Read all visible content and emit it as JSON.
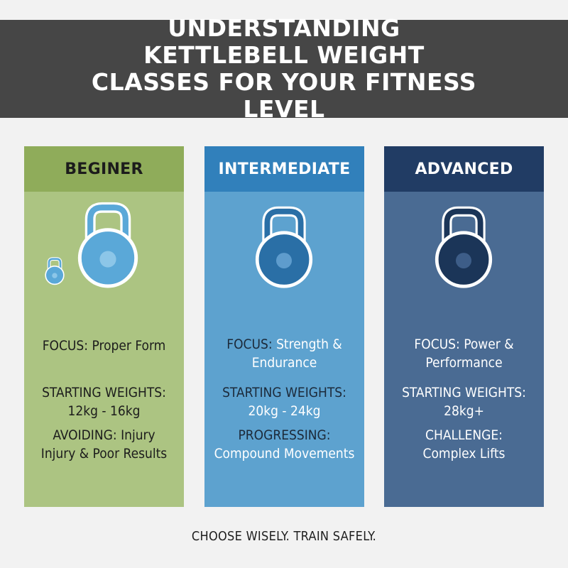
{
  "banner": {
    "title": "UNDERSTANDING KETTLEBELL WEIGHT CLASSES FOR YOUR FITNESS LEVEL"
  },
  "colors": {
    "banner": "#464646",
    "beginner_header": "#8fac5a",
    "beginner_body": "#acc482",
    "intermediate_header": "#3180bb",
    "intermediate_body": "#5da2cf",
    "advanced_header": "#213c64",
    "advanced_body": "#4a6b93"
  },
  "cards": [
    {
      "title": "BEGINER",
      "icon": "kettlebell-icon",
      "focus_label": "FOCUS:",
      "focus_value": "Proper Form",
      "weights_label": "STARTING WEIGHTS:",
      "weights_value": "12kg - 16kg",
      "extra_label": "AVOIDING:",
      "extra_value_1": "Injury",
      "extra_value_2": "Injury & Poor Results"
    },
    {
      "title": "INTERMEDIATE",
      "icon": "kettlebell-icon",
      "focus_label": "FOCUS:",
      "focus_value_1": "Strength &",
      "focus_value_2": "Endurance",
      "weights_label": "STARTING WEIGHTS:",
      "weights_value": "20kg - 24kg",
      "extra_label": "PROGRESSING:",
      "extra_value": "Compound Movements"
    },
    {
      "title": "ADVANCED",
      "icon": "kettlebell-icon",
      "focus_label": "FOCUS:",
      "focus_value_1": "Power &",
      "focus_value_2": "Performance",
      "weights_label": "STARTING WEIGHTS:",
      "weights_value": "28kg+",
      "extra_label": "CHALLENGE:",
      "extra_value": "Complex Lifts"
    }
  ],
  "footer": {
    "text": "CHOOSE WISELY. TRAIN SAFELY."
  }
}
